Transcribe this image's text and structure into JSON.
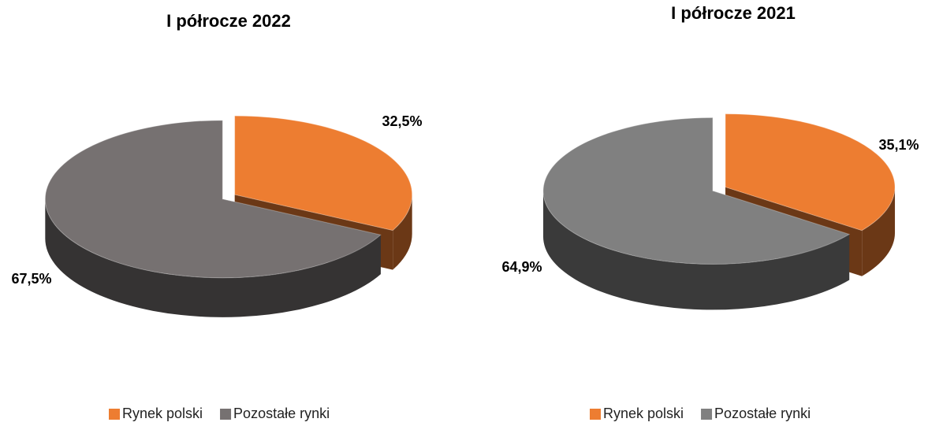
{
  "chart_data": [
    {
      "type": "pie",
      "title": "I półrocze 2022",
      "categories": [
        "Rynek polski",
        "Pozostałe rynki"
      ],
      "values": [
        32.5,
        67.5
      ],
      "value_labels": [
        "32,5%",
        "67,5%"
      ],
      "colors": [
        "#ED7D31",
        "#767171"
      ],
      "legend": "bottom"
    },
    {
      "type": "pie",
      "title": "I półrocze 2021",
      "categories": [
        "Rynek polski",
        "Pozostałe rynki"
      ],
      "values": [
        35.1,
        64.9
      ],
      "value_labels": [
        "35,1%",
        "64,9%"
      ],
      "colors": [
        "#ED7D31",
        "#808080"
      ],
      "legend": "bottom"
    }
  ]
}
